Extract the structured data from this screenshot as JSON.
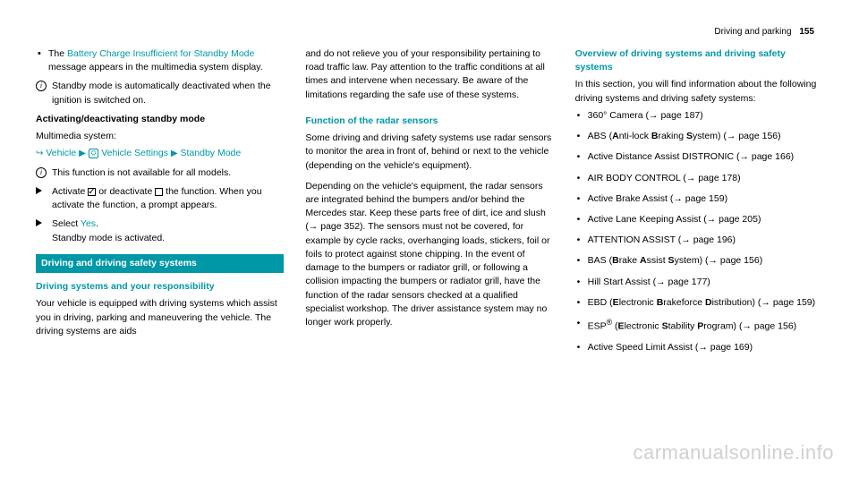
{
  "header": {
    "section": "Driving and parking",
    "page": "155"
  },
  "col1": {
    "bullet1_pre": "The ",
    "bullet1_teal": "Battery Charge Insufficient for Standby Mode",
    "bullet1_post": " message appears in the multimedia system display.",
    "info1": "Standby mode is automatically deactivated when the ignition is switched on.",
    "activating_title": "Activating/deactivating standby mode",
    "multimedia": "Multimedia system:",
    "nav_vehicle": "Vehicle",
    "nav_settings": "Vehicle Settings",
    "nav_standby": "Standby Mode",
    "info2": "This function is not available for all models.",
    "action1_pre": "Activate ",
    "action1_mid": " or deactivate ",
    "action1_post": " the function. When you activate the function, a prompt appears.",
    "action2_pre": "Select ",
    "action2_yes": "Yes",
    "action2_post": ".",
    "action2_line2": "Standby mode is activated.",
    "section_bar": "Driving and driving safety systems",
    "subhead1": "Driving systems and your responsibility",
    "para1": "Your vehicle is equipped with driving systems which assist you in driving, parking and maneuvering the vehicle. The driving systems are aids"
  },
  "col2": {
    "para_top": "and do not relieve you of your responsibility pertaining to road traffic law. Pay attention to the traffic conditions at all times and intervene when necessary. Be aware of the limitations regarding the safe use of these systems.",
    "subhead": "Function of the radar sensors",
    "para1": "Some driving and driving safety systems use radar sensors to monitor the area in front of, behind or next to the vehicle (depending on the vehicle's equipment).",
    "para2": "Depending on the vehicle's equipment, the radar sensors are integrated behind the bumpers and/or behind the Mercedes star. Keep these parts free of dirt, ice and slush (→ page 352). The sensors must not be covered, for example by cycle racks, overhanging loads, stickers, foil or foils to protect against stone chipping. In the event of damage to the bumpers or radiator grill, or following a collision impacting the bumpers or radiator grill, have the function of the radar sensors checked at a qualified specialist workshop. The driver assistance system may no longer work properly."
  },
  "col3": {
    "subhead": "Overview of driving systems and driving safety systems",
    "intro": "In this section, you will find information about the following driving systems and driving safety systems:",
    "items": [
      {
        "html": "360° Camera (→ page 187)"
      },
      {
        "html": "ABS (<b>A</b>nti-lock <b>B</b>raking <b>S</b>ystem) (→ page 156)"
      },
      {
        "html": "Active Distance Assist DISTRONIC (→ page 166)"
      },
      {
        "html": "AIR BODY CONTROL (→ page 178)"
      },
      {
        "html": "Active Brake Assist (→ page 159)"
      },
      {
        "html": "Active Lane Keeping Assist (→ page 205)"
      },
      {
        "html": "ATTENTION ASSIST (→ page 196)"
      },
      {
        "html": "BAS (<b>B</b>rake <b>A</b>ssist <b>S</b>ystem) (→ page 156)"
      },
      {
        "html": "Hill Start Assist (→ page 177)"
      },
      {
        "html": "EBD (<b>E</b>lectronic <b>B</b>rakeforce <b>D</b>istribution) (→ page 159)"
      },
      {
        "html": "ESP<sup>®</sup> (<b>E</b>lectronic <b>S</b>tability <b>P</b>rogram) (→ page 156)"
      },
      {
        "html": "Active Speed Limit Assist (→ page 169)"
      }
    ]
  },
  "watermark": "carmanualsonline.info"
}
